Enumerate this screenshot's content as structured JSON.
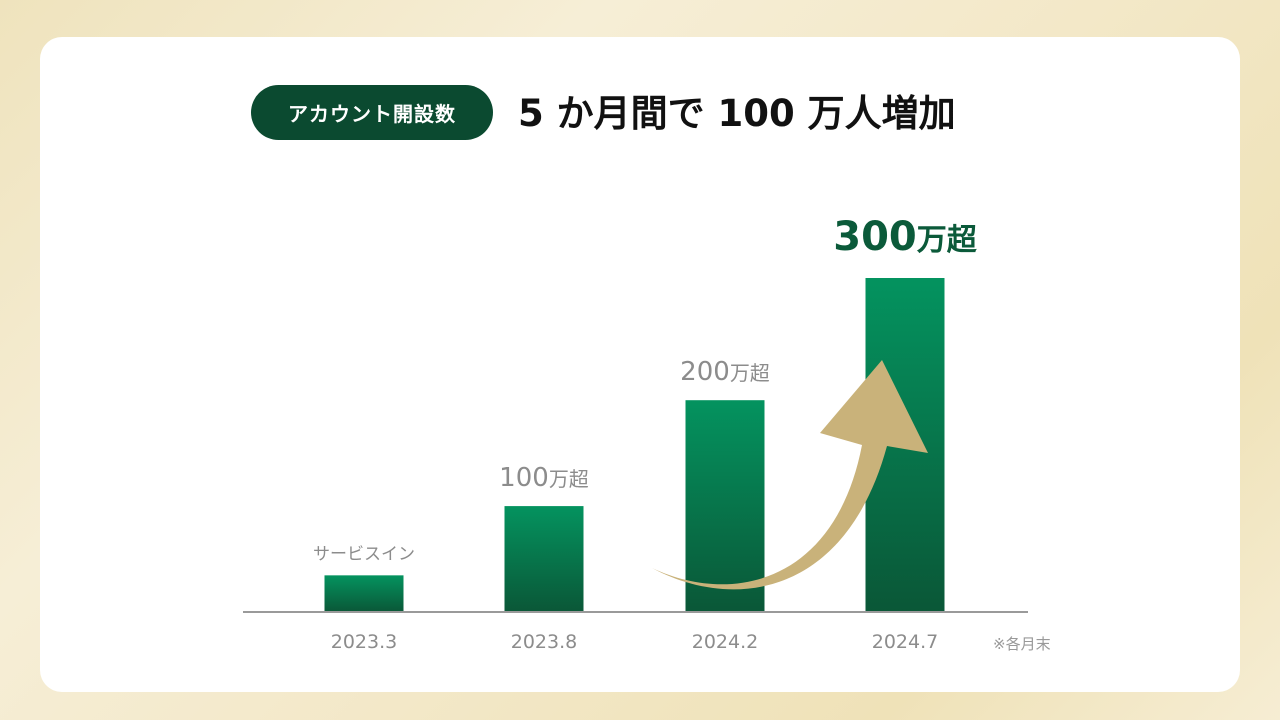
{
  "header": {
    "badge": "アカウント開設数",
    "title": "5 か月間で 100 万人増加"
  },
  "note": "※各月末",
  "colors": {
    "bar_top": "#04935f",
    "bar_bottom": "#0a5737",
    "badge_bg": "#0b4a30",
    "highlight_label": "#0b5a3a",
    "label_gray": "#8c8c8c",
    "arrow": "#c9b27a"
  },
  "chart_data": {
    "type": "bar",
    "categories": [
      "2023.3",
      "2023.8",
      "2024.2",
      "2024.7"
    ],
    "values": [
      0.45,
      1.3,
      2.6,
      4.1
    ],
    "data_labels": [
      {
        "text": "サービスイン",
        "num": "",
        "unit": ""
      },
      {
        "text": "",
        "num": "100",
        "unit": "万超"
      },
      {
        "text": "",
        "num": "200",
        "unit": "万超"
      },
      {
        "text": "",
        "num": "300",
        "unit": "万超"
      }
    ],
    "highlight_index": 3,
    "ylim": [
      0,
      4.1
    ],
    "grid": false,
    "annotation": "growth-arrow"
  }
}
